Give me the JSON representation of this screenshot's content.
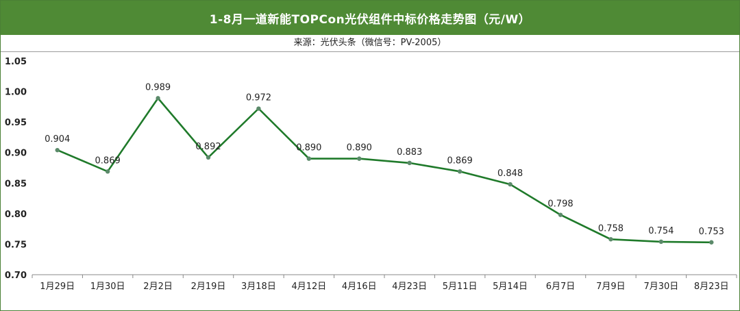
{
  "title": "1-8月一道新能TOPCon光伏组件中标价格走势图（元/W）",
  "source": "来源：光伏头条（微信号：PV-2005）",
  "colors": {
    "header_bg": "#4f8a35",
    "line": "#1f7a2a",
    "marker": "#5b8a6a"
  },
  "chart_data": {
    "type": "line",
    "title": "1-8月一道新能TOPCon光伏组件中标价格走势图（元/W）",
    "xlabel": "",
    "ylabel": "",
    "ylim": [
      0.7,
      1.05
    ],
    "yticks": [
      "0.70",
      "0.75",
      "0.80",
      "0.85",
      "0.90",
      "0.95",
      "1.00",
      "1.05"
    ],
    "categories": [
      "1月29日",
      "1月30日",
      "2月2日",
      "2月19日",
      "3月18日",
      "4月12日",
      "4月16日",
      "4月23日",
      "5月11日",
      "5月14日",
      "6月7日",
      "7月9日",
      "7月30日",
      "8月23日"
    ],
    "values": [
      0.904,
      0.869,
      0.989,
      0.892,
      0.972,
      0.89,
      0.89,
      0.883,
      0.869,
      0.848,
      0.798,
      0.758,
      0.754,
      0.753
    ],
    "value_labels": [
      "0.904",
      "0.869",
      "0.989",
      "0.892",
      "0.972",
      "0.890",
      "0.890",
      "0.883",
      "0.869",
      "0.848",
      "0.798",
      "0.758",
      "0.754",
      "0.753"
    ],
    "grid": false,
    "legend": "none"
  }
}
